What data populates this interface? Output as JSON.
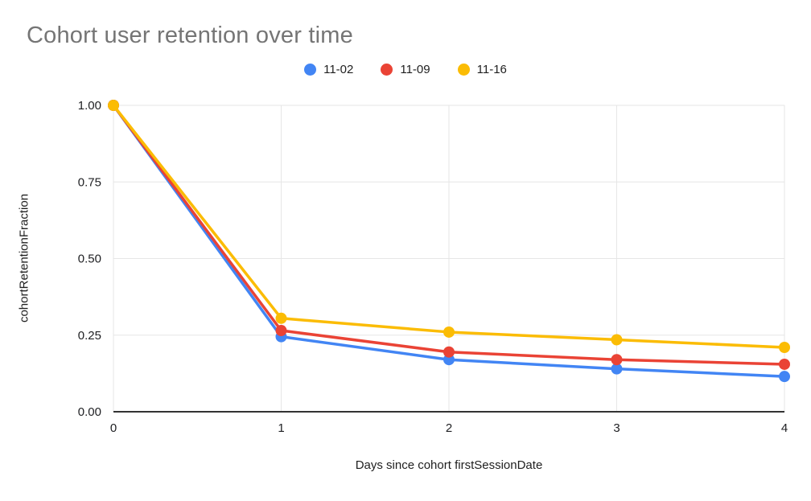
{
  "title": "Cohort user retention over time",
  "chart_data": {
    "type": "line",
    "title": "Cohort user retention over time",
    "xlabel": "Days since cohort firstSessionDate",
    "ylabel": "cohortRetentionFraction",
    "x": [
      0,
      1,
      2,
      3,
      4
    ],
    "x_tick_labels": [
      "0",
      "1",
      "2",
      "3",
      "4"
    ],
    "y_ticks": [
      0,
      0.25,
      0.5,
      0.75,
      1
    ],
    "y_tick_labels": [
      "0.00",
      "0.25",
      "0.50",
      "0.75",
      "1.00"
    ],
    "xlim": [
      0,
      4
    ],
    "ylim": [
      0,
      1
    ],
    "grid": true,
    "legend_position": "top",
    "series": [
      {
        "name": "11-02",
        "color": "#4285F4",
        "values": [
          1.0,
          0.245,
          0.17,
          0.14,
          0.115
        ]
      },
      {
        "name": "11-09",
        "color": "#EA4335",
        "values": [
          1.0,
          0.265,
          0.195,
          0.17,
          0.155
        ]
      },
      {
        "name": "11-16",
        "color": "#FBBC04",
        "values": [
          1.0,
          0.305,
          0.26,
          0.235,
          0.21
        ]
      }
    ]
  },
  "colors": {
    "title_text": "#757575",
    "axis_text": "#202124",
    "gridline": "#e6e6e6",
    "baseline": "#333333",
    "background": "#ffffff"
  }
}
